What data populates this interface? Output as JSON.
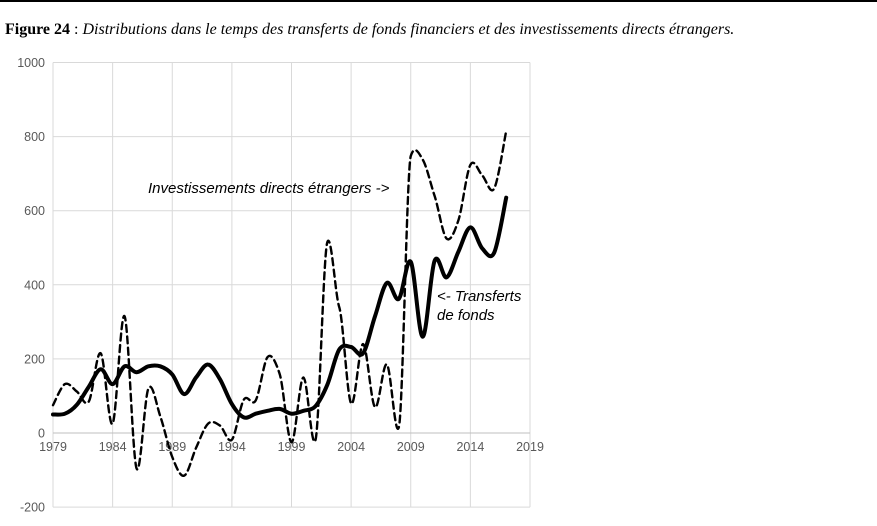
{
  "figure": {
    "label": "Figure 24",
    "separator": " : ",
    "caption": "Distributions dans le temps des transferts de fonds financiers et des investissements directs étrangers."
  },
  "annotations": {
    "fdi": "Investissements directs étrangers ->",
    "remittances_line1": "<- Transferts",
    "remittances_line2": "de fonds"
  },
  "chart_data": {
    "type": "line",
    "title": "",
    "xlabel": "",
    "ylabel": "",
    "xlim": [
      1979,
      2019
    ],
    "ylim": [
      -200,
      1000
    ],
    "x_ticks": [
      1979,
      1984,
      1989,
      1994,
      1999,
      2004,
      2009,
      2014,
      2019
    ],
    "y_ticks": [
      -200,
      0,
      200,
      400,
      600,
      800,
      1000
    ],
    "grid": true,
    "x_axis_labels_at_zero_line": true,
    "x": [
      1979,
      1980,
      1981,
      1982,
      1983,
      1984,
      1985,
      1986,
      1987,
      1988,
      1989,
      1990,
      1991,
      1992,
      1993,
      1994,
      1995,
      1996,
      1997,
      1998,
      1999,
      2000,
      2001,
      2002,
      2003,
      2004,
      2005,
      2006,
      2007,
      2008,
      2009,
      2010,
      2011,
      2012,
      2013,
      2014,
      2015,
      2016,
      2017
    ],
    "series": [
      {
        "name": "Investissements directs étrangers",
        "style": "dashed",
        "values": [
          75,
          132,
          112,
          85,
          215,
          25,
          315,
          -95,
          120,
          45,
          -65,
          -115,
          -40,
          25,
          20,
          -18,
          90,
          88,
          205,
          160,
          -25,
          150,
          -20,
          515,
          340,
          80,
          240,
          70,
          185,
          15,
          748,
          738,
          640,
          525,
          575,
          724,
          695,
          660,
          815
        ]
      },
      {
        "name": "Transferts de fonds",
        "style": "solid",
        "values": [
          50,
          52,
          76,
          125,
          172,
          132,
          180,
          164,
          180,
          180,
          158,
          105,
          150,
          185,
          145,
          78,
          42,
          52,
          60,
          65,
          52,
          60,
          72,
          130,
          225,
          232,
          215,
          315,
          405,
          362,
          462,
          260,
          465,
          420,
          490,
          555,
          498,
          487,
          635
        ]
      }
    ],
    "colors": {
      "series": "#000000",
      "grid": "#d9d9d9",
      "zero_line": "#bfbfbf",
      "tick_labels": "#595959"
    }
  }
}
